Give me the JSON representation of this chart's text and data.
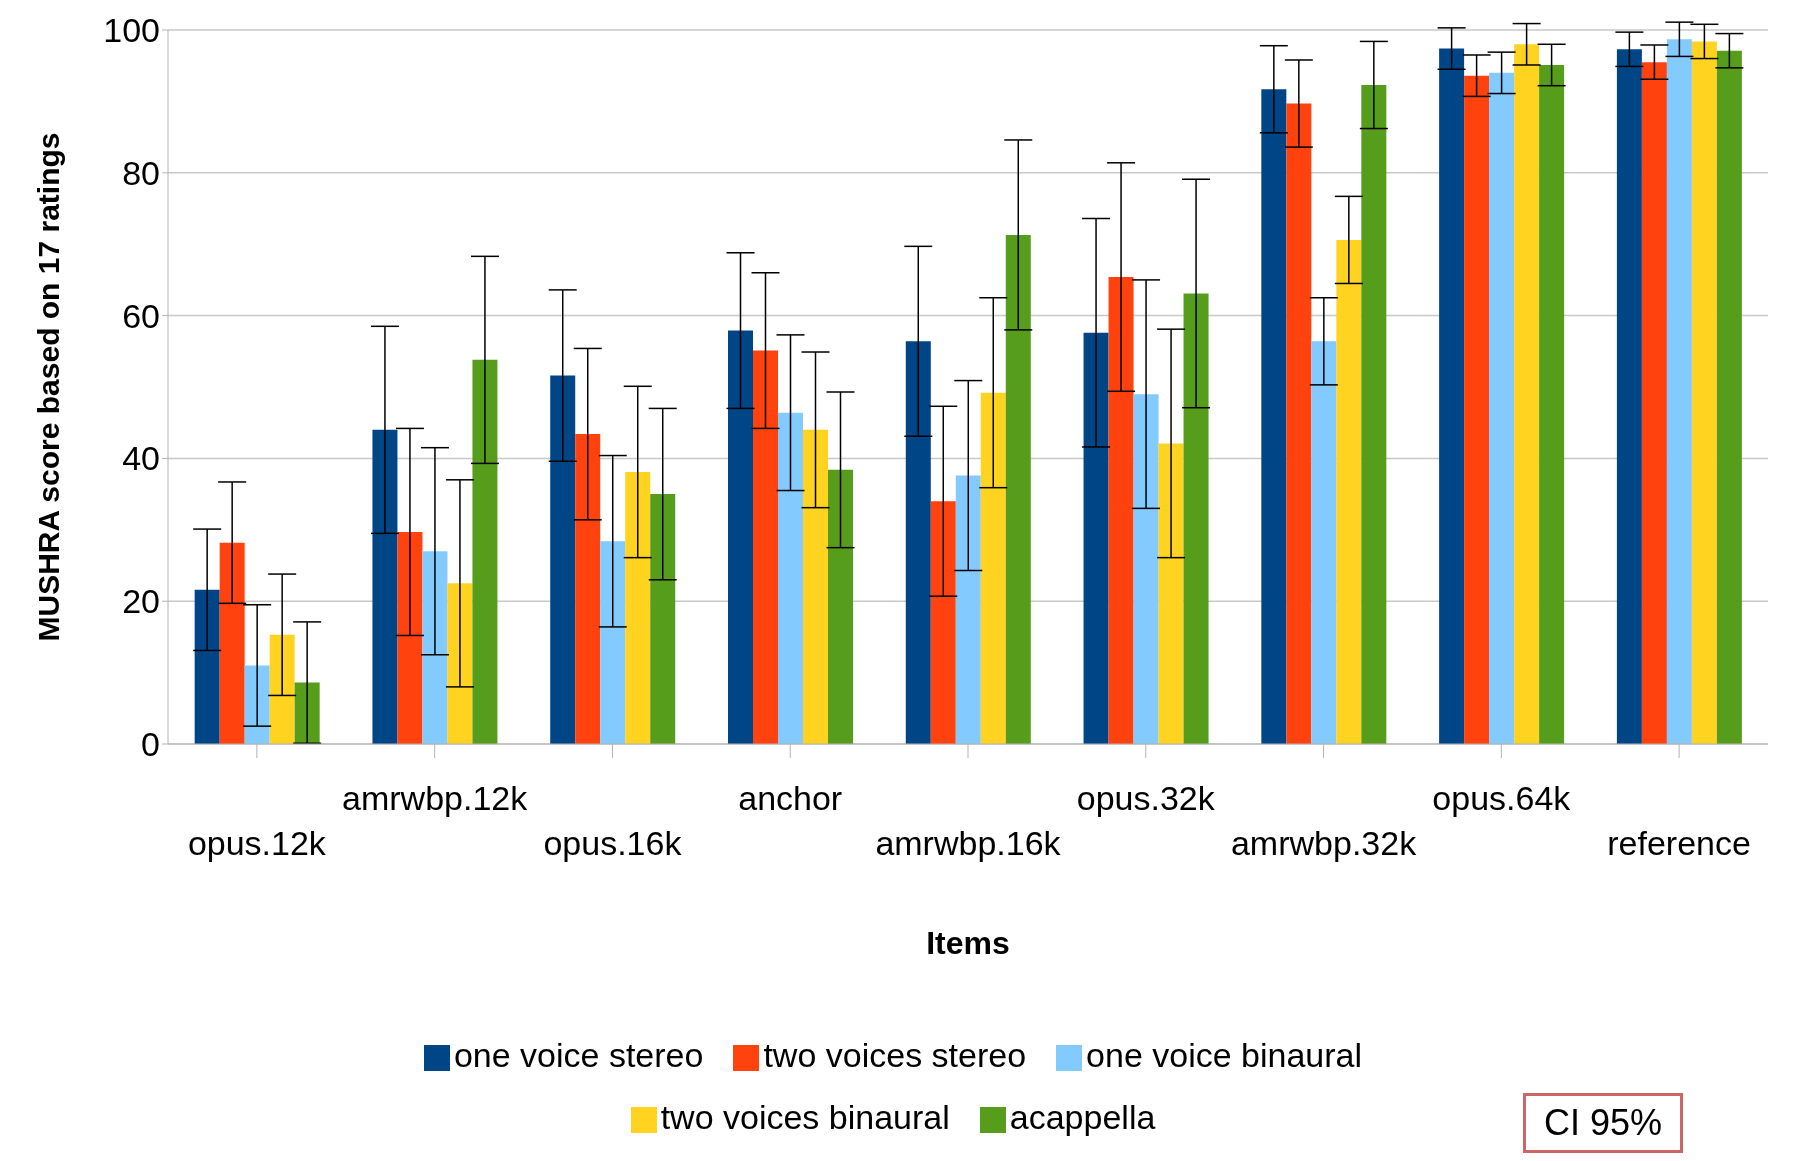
{
  "chart_data": {
    "type": "bar",
    "xlabel": "Items",
    "ylabel": "MUSHRA score based on 17 ratings",
    "categories": [
      "opus.12k",
      "amrwbp.12k",
      "opus.16k",
      "anchor",
      "amrwbp.16k",
      "opus.32k",
      "amrwbp.32k",
      "opus.64k",
      "reference"
    ],
    "series": [
      {
        "name": "one voice stereo",
        "color": "#004586",
        "values": [
          21.6,
          44,
          51.6,
          57.9,
          56.4,
          57.6,
          91.7,
          97.4,
          97.3
        ],
        "errors": [
          8.5,
          14.5,
          12,
          10.9,
          13.3,
          16,
          6.1,
          2.9,
          2.4
        ]
      },
      {
        "name": "two voices stereo",
        "color": "#ff420e",
        "values": [
          28.2,
          29.7,
          43.4,
          55.1,
          34,
          65.4,
          89.7,
          93.6,
          95.5
        ],
        "errors": [
          8.5,
          14.5,
          12,
          10.9,
          13.3,
          16,
          6.1,
          2.9,
          2.4
        ]
      },
      {
        "name": "one voice binaural",
        "color": "#83caff",
        "values": [
          11,
          27,
          28.4,
          46.4,
          37.6,
          49,
          56.4,
          94,
          98.7
        ],
        "errors": [
          8.5,
          14.5,
          12,
          10.9,
          13.3,
          16,
          6.1,
          2.9,
          2.4
        ]
      },
      {
        "name": "two voices binaural",
        "color": "#ffd320",
        "values": [
          15.3,
          22.5,
          38.1,
          44,
          49.2,
          42.1,
          70.6,
          98,
          98.4
        ],
        "errors": [
          8.5,
          14.5,
          12,
          10.9,
          13.3,
          16,
          6.1,
          2.9,
          2.4
        ]
      },
      {
        "name": "acappella",
        "color": "#579d1c",
        "values": [
          8.6,
          53.8,
          35,
          38.4,
          71.3,
          63.1,
          92.3,
          95.1,
          97.1
        ],
        "errors": [
          8.5,
          14.5,
          12,
          10.9,
          13.3,
          16,
          6.1,
          2.9,
          2.4
        ]
      }
    ],
    "ylim": [
      0,
      100
    ],
    "yticks": [
      0,
      20,
      40,
      60,
      80,
      100
    ],
    "grid": "y",
    "legend": "bottom",
    "annotations": [
      "CI 95%"
    ]
  }
}
